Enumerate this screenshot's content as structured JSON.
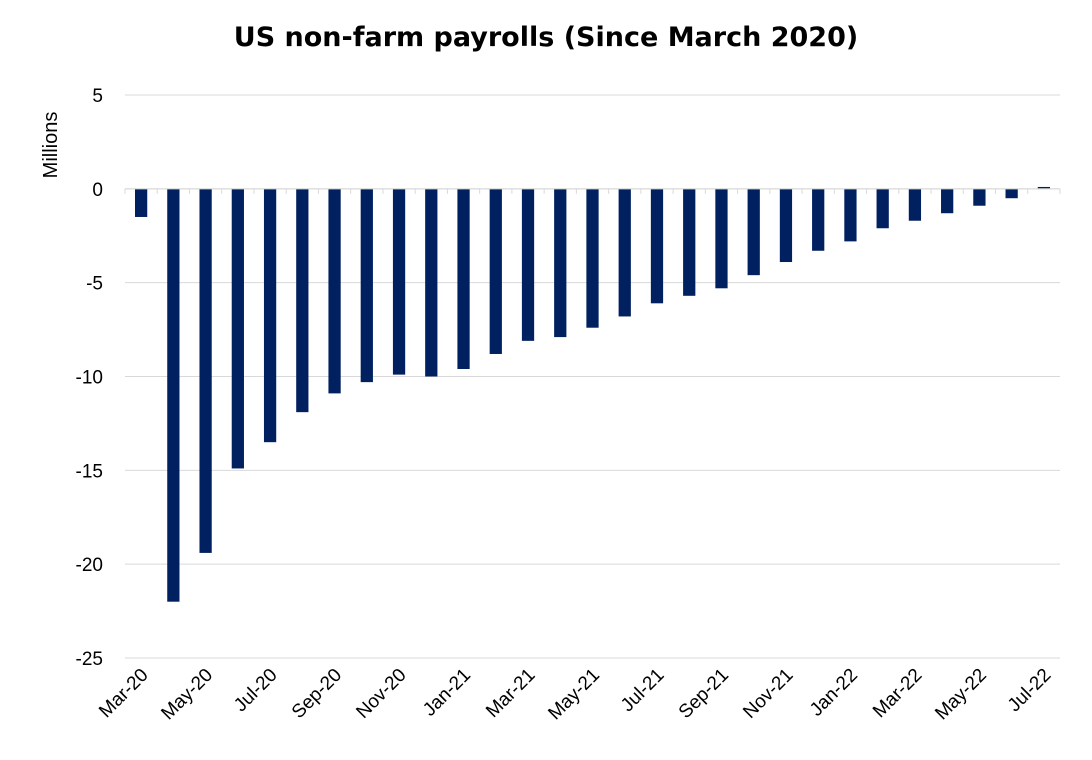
{
  "chart_data": {
    "type": "bar",
    "title": "US non-farm payrolls (Since March 2020)",
    "ylabel": "Millions",
    "ylim": [
      -25,
      5
    ],
    "yticks": [
      "5",
      "0",
      "-5",
      "-10",
      "-15",
      "-20",
      "-25"
    ],
    "grid": true,
    "bar_color": "#002060",
    "categories": [
      "Mar-20",
      "Apr-20",
      "May-20",
      "Jun-20",
      "Jul-20",
      "Aug-20",
      "Sep-20",
      "Oct-20",
      "Nov-20",
      "Dec-20",
      "Jan-21",
      "Feb-21",
      "Mar-21",
      "Apr-21",
      "May-21",
      "Jun-21",
      "Jul-21",
      "Aug-21",
      "Sep-21",
      "Oct-21",
      "Nov-21",
      "Dec-21",
      "Jan-22",
      "Feb-22",
      "Mar-22",
      "Apr-22",
      "May-22",
      "Jun-22",
      "Jul-22"
    ],
    "tick_labels": [
      "Mar-20",
      "May-20",
      "Jul-20",
      "Sep-20",
      "Nov-20",
      "Jan-21",
      "Mar-21",
      "May-21",
      "Jul-21",
      "Sep-21",
      "Nov-21",
      "Jan-22",
      "Mar-22",
      "May-22",
      "Jul-22"
    ],
    "values": [
      -1.5,
      -22.0,
      -19.4,
      -14.9,
      -13.5,
      -11.9,
      -10.9,
      -10.3,
      -9.9,
      -10.0,
      -9.6,
      -8.8,
      -8.1,
      -7.9,
      -7.4,
      -6.8,
      -6.1,
      -5.7,
      -5.3,
      -4.6,
      -3.9,
      -3.3,
      -2.8,
      -2.1,
      -1.7,
      -1.3,
      -0.9,
      -0.5,
      0.1
    ]
  }
}
